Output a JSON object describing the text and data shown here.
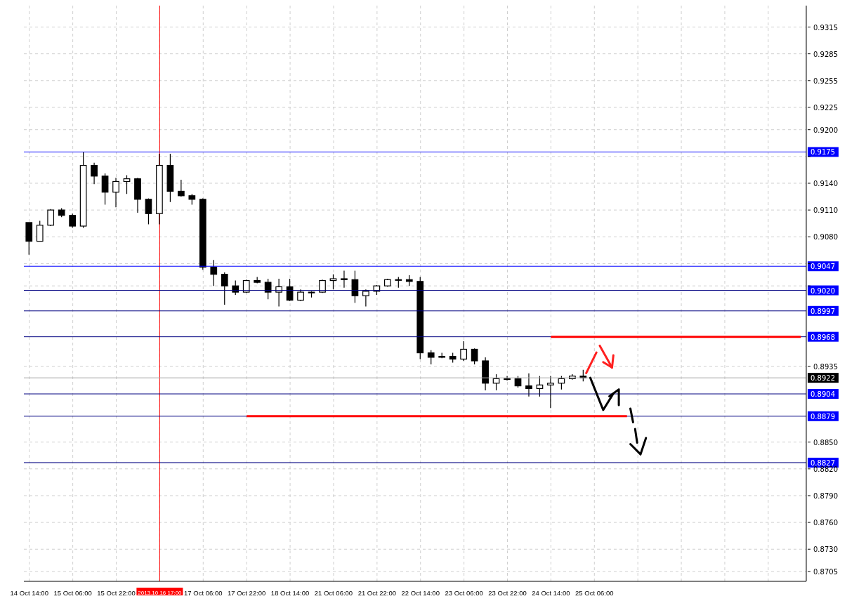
{
  "chart_data": {
    "type": "candlestick",
    "categories": [
      "14 Oct 14:00",
      null,
      null,
      null,
      "15 Oct 06:00",
      null,
      null,
      null,
      "15 Oct 22:00",
      null,
      null,
      null,
      "2013.10.16 17:00",
      null,
      null,
      null,
      "17 Oct 06:00",
      null,
      null,
      null,
      "17 Oct 22:00",
      null,
      null,
      null,
      "18 Oct 14:00",
      null,
      null,
      null,
      "21 Oct 06:00",
      null,
      null,
      null,
      "21 Oct 22:00",
      null,
      null,
      null,
      "22 Oct 14:00",
      null,
      null,
      null,
      "23 Oct 06:00",
      null,
      null,
      null,
      "23 Oct 22:00",
      null,
      null,
      null,
      "24 Oct 14:00",
      null,
      null,
      null,
      "25 Oct 06:00",
      null,
      null,
      null,
      null,
      null,
      null,
      null,
      null,
      null,
      null,
      null,
      null,
      null,
      null,
      null,
      null,
      null,
      null,
      null
    ],
    "ohlc": [
      [
        0.9096,
        0.9096,
        0.906,
        0.9075
      ],
      [
        0.9075,
        0.9098,
        0.9075,
        0.9093
      ],
      [
        0.9093,
        0.9111,
        0.9092,
        0.911
      ],
      [
        0.911,
        0.9112,
        0.9102,
        0.9104
      ],
      [
        0.9104,
        0.9106,
        0.909,
        0.9092
      ],
      [
        0.9092,
        0.9175,
        0.909,
        0.916
      ],
      [
        0.916,
        0.9163,
        0.9139,
        0.9148
      ],
      [
        0.9148,
        0.9151,
        0.9116,
        0.913
      ],
      [
        0.913,
        0.9146,
        0.9113,
        0.9142
      ],
      [
        0.9142,
        0.9149,
        0.9128,
        0.9145
      ],
      [
        0.9145,
        0.9146,
        0.9107,
        0.9122
      ],
      [
        0.9122,
        0.9123,
        0.9094,
        0.9106
      ],
      [
        0.9106,
        0.9173,
        0.9094,
        0.916
      ],
      [
        0.916,
        0.9173,
        0.9119,
        0.9131
      ],
      [
        0.9131,
        0.9144,
        0.9125,
        0.9126
      ],
      [
        0.9126,
        0.9128,
        0.9116,
        0.9122
      ],
      [
        0.9122,
        0.9123,
        0.9043,
        0.9046
      ],
      [
        0.9046,
        0.9054,
        0.9025,
        0.9038
      ],
      [
        0.9038,
        0.904,
        0.9004,
        0.9025
      ],
      [
        0.9025,
        0.9031,
        0.9015,
        0.9018
      ],
      [
        0.9018,
        0.9032,
        0.9017,
        0.9031
      ],
      [
        0.9031,
        0.9035,
        0.9028,
        0.9029
      ],
      [
        0.9029,
        0.9033,
        0.901,
        0.9018
      ],
      [
        0.9018,
        0.9033,
        0.9002,
        0.9024
      ],
      [
        0.9024,
        0.9033,
        0.9008,
        0.9009
      ],
      [
        0.9009,
        0.9021,
        0.9008,
        0.9018
      ],
      [
        0.9018,
        0.9019,
        0.9012,
        0.9018
      ],
      [
        0.9018,
        0.9032,
        0.9017,
        0.9031
      ],
      [
        0.9031,
        0.9038,
        0.9021,
        0.9033
      ],
      [
        0.9033,
        0.9042,
        0.9023,
        0.9032
      ],
      [
        0.9032,
        0.9042,
        0.9006,
        0.9014
      ],
      [
        0.9014,
        0.9021,
        0.9002,
        0.9019
      ],
      [
        0.9019,
        0.9026,
        0.9015,
        0.9025
      ],
      [
        0.9025,
        0.9033,
        0.9024,
        0.9032
      ],
      [
        0.9032,
        0.9035,
        0.9023,
        0.9032
      ],
      [
        0.9032,
        0.9037,
        0.9025,
        0.903
      ],
      [
        0.903,
        0.9035,
        0.8943,
        0.895
      ],
      [
        0.895,
        0.8953,
        0.8937,
        0.8945
      ],
      [
        0.8945,
        0.895,
        0.8944,
        0.8946
      ],
      [
        0.8946,
        0.895,
        0.8939,
        0.8943
      ],
      [
        0.8943,
        0.8963,
        0.8941,
        0.8954
      ],
      [
        0.8954,
        0.8955,
        0.8937,
        0.8941
      ],
      [
        0.8941,
        0.8945,
        0.8908,
        0.8916
      ],
      [
        0.8916,
        0.8926,
        0.8908,
        0.8921
      ],
      [
        0.8921,
        0.8924,
        0.8919,
        0.8921
      ],
      [
        0.8921,
        0.8924,
        0.8911,
        0.8913
      ],
      [
        0.8913,
        0.8927,
        0.8901,
        0.891
      ],
      [
        0.891,
        0.8924,
        0.8901,
        0.8914
      ],
      [
        0.8914,
        0.8924,
        0.8888,
        0.8916
      ],
      [
        0.8916,
        0.8924,
        0.8909,
        0.8921
      ],
      [
        0.8921,
        0.8926,
        0.892,
        0.8924
      ],
      [
        0.8924,
        0.8931,
        0.8918,
        0.8922
      ],
      null,
      null,
      null,
      null,
      null,
      null,
      null,
      null,
      null,
      null,
      null,
      null,
      null,
      null,
      null,
      null,
      null,
      null,
      null,
      null
    ],
    "series": [
      {
        "type": "line",
        "color": "#ff0000",
        "values": [
          null,
          null,
          null,
          null,
          null,
          null,
          null,
          null,
          null,
          null,
          null,
          null,
          null,
          null,
          null,
          null,
          null,
          null,
          null,
          null,
          0.8879,
          0.8879,
          0.8879,
          0.8879,
          0.8879,
          0.8879,
          0.8879,
          0.8879,
          0.8879,
          0.8879,
          0.8879,
          0.8879,
          0.8879,
          0.8879,
          0.8879,
          0.8879,
          0.8879,
          0.8879,
          0.8879,
          0.8879,
          0.8879,
          0.8879,
          0.8879,
          0.8879,
          0.8879,
          0.8879,
          0.8879,
          0.8879,
          0.8879,
          0.8879,
          0.8879,
          0.8879,
          0.8879,
          0.8879,
          0.8879,
          0.8879,
          null,
          null,
          null,
          null,
          null,
          null,
          null,
          null,
          null,
          null,
          null,
          null,
          null,
          null,
          null,
          null
        ]
      },
      {
        "type": "line",
        "color": "#ff0000",
        "values": [
          null,
          null,
          null,
          null,
          null,
          null,
          null,
          null,
          null,
          null,
          null,
          null,
          null,
          null,
          null,
          null,
          null,
          null,
          null,
          null,
          null,
          null,
          null,
          null,
          null,
          null,
          null,
          null,
          null,
          null,
          null,
          null,
          null,
          null,
          null,
          null,
          null,
          null,
          null,
          null,
          null,
          null,
          null,
          null,
          null,
          null,
          null,
          null,
          0.8968,
          0.8968,
          0.8968,
          0.8968,
          0.8968,
          0.8968,
          0.8968,
          0.8968,
          0.8968,
          0.8968,
          0.8968,
          0.8968,
          0.8968,
          0.8968,
          0.8968,
          0.8968,
          0.8968,
          0.8968,
          0.8968,
          0.8968,
          0.8968,
          0.8968,
          0.8968,
          0.8968
        ]
      }
    ],
    "ylim": [
      0.8694,
      0.9339
    ],
    "yticks": [
      0.9315,
      0.9285,
      0.9255,
      0.9225,
      {
        "value": 0.92,
        "label": "0.9200"
      },
      {
        "value": 0.917,
        "label": null
      },
      {
        "value": 0.914,
        "label": "0.9140"
      },
      {
        "value": 0.911,
        "label": "0.9110"
      },
      {
        "value": 0.908,
        "label": "0.9080"
      },
      {
        "value": 0.905,
        "label": null
      },
      {
        "value": 0.9025,
        "label": null
      },
      0.8935,
      {
        "value": 0.885,
        "label": "0.8850"
      },
      {
        "value": 0.882,
        "label": "0.8820"
      },
      {
        "value": 0.879,
        "label": "0.8790"
      },
      {
        "value": 0.876,
        "label": "0.8760"
      },
      {
        "value": 0.873,
        "label": "0.8730"
      },
      0.8705
    ],
    "ref_lines": [
      {
        "axis": "x",
        "value": "2013.10.16 17:00",
        "color": "#ff0000"
      },
      {
        "axis": "y",
        "value": 0.9175,
        "label": "0.9175",
        "color": "#0000ff"
      },
      {
        "axis": "y",
        "value": 0.9047,
        "label": "0.9047",
        "color": "#0000ff"
      },
      {
        "axis": "y",
        "value": 0.902,
        "label": "0.9020",
        "color": "#000080"
      },
      {
        "axis": "y",
        "value": 0.8997,
        "label": "0.8997",
        "color": "#000080"
      },
      {
        "axis": "y",
        "value": 0.8968,
        "label": "0.8968",
        "color": "#000080"
      },
      {
        "axis": "y",
        "value": 0.8922,
        "label": "0.8922",
        "color": "#a8a8a8"
      },
      {
        "axis": "y",
        "value": 0.8904,
        "label": "0.8904",
        "color": "#000080"
      },
      {
        "axis": "y",
        "value": 0.8879,
        "label": "0.8879",
        "color": "#000080"
      },
      {
        "axis": "y",
        "value": 0.8827,
        "label": "0.8827",
        "color": "#000080"
      }
    ],
    "grid": true
  }
}
